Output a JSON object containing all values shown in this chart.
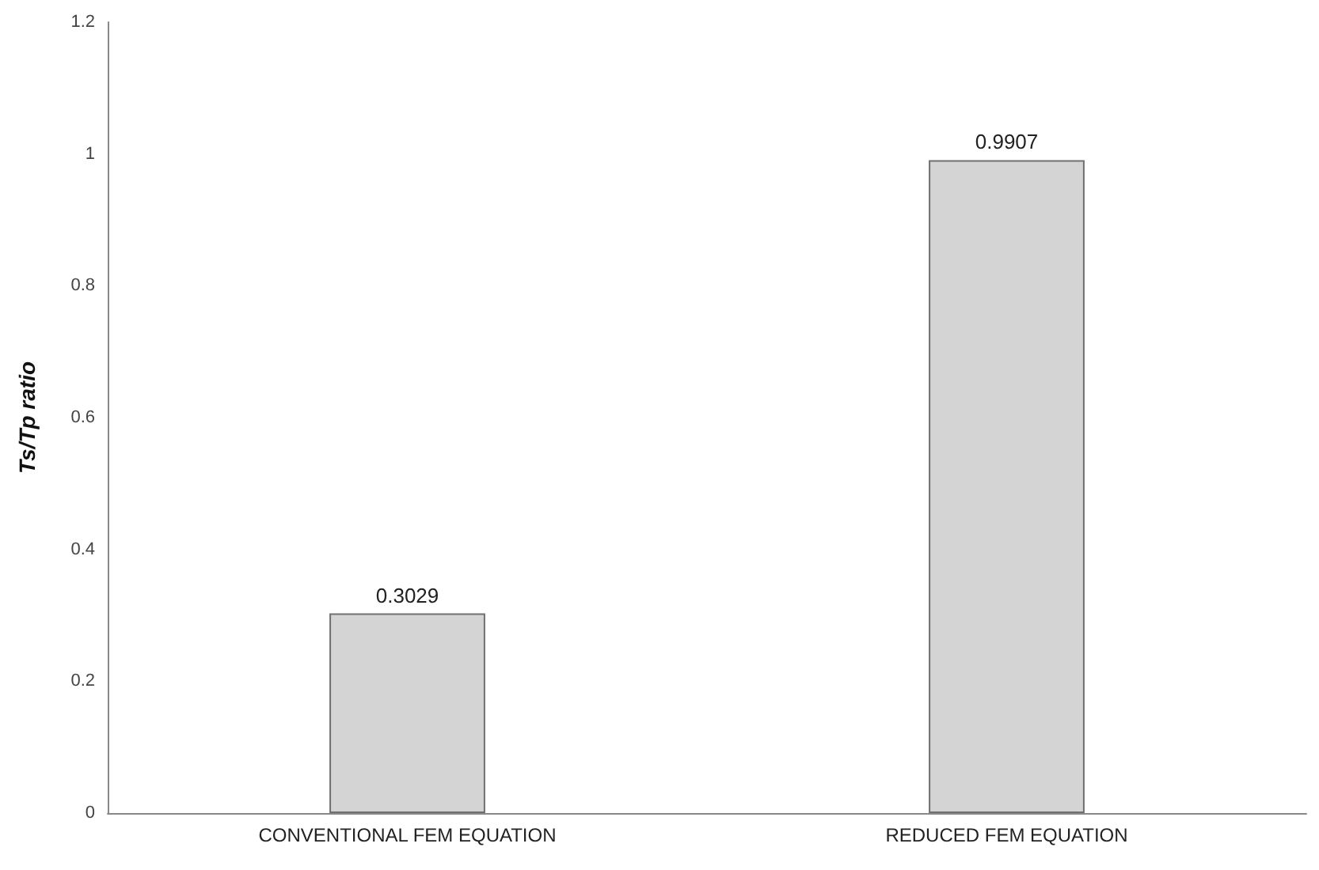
{
  "chart_data": {
    "type": "bar",
    "ylabel": "Ts/Tp ratio",
    "categories": [
      "CONVENTIONAL FEM EQUATION",
      "REDUCED FEM EQUATION"
    ],
    "values": [
      0.3029,
      0.9907
    ],
    "color": "#d4d4d4",
    "data_labels": true,
    "ylim": [
      0,
      1.2
    ],
    "yticks": [
      0,
      0.2,
      0.4,
      0.6,
      0.8,
      1,
      1.2
    ],
    "grid": false
  }
}
